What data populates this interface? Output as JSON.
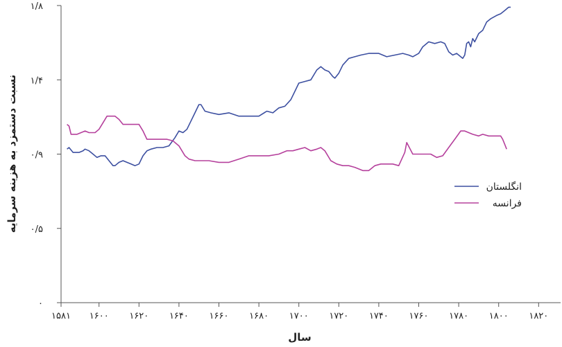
{
  "chart_data": {
    "type": "line",
    "xlabel": "سال",
    "ylabel": "نسبت دستمزد به هزینه سرمایه",
    "xlim": [
      1581,
      1831
    ],
    "ylim": [
      0,
      1.8
    ],
    "x_ticks": [
      {
        "value": 1581,
        "label": "۱۵۸۱"
      },
      {
        "value": 1600,
        "label": "۱۶۰۰"
      },
      {
        "value": 1620,
        "label": "۱۶۲۰"
      },
      {
        "value": 1640,
        "label": "۱۶۴۰"
      },
      {
        "value": 1660,
        "label": "۱۶۶۰"
      },
      {
        "value": 1680,
        "label": "۱۶۸۰"
      },
      {
        "value": 1700,
        "label": "۱۷۰۰"
      },
      {
        "value": 1720,
        "label": "۱۷۲۰"
      },
      {
        "value": 1740,
        "label": "۱۷۴۰"
      },
      {
        "value": 1760,
        "label": "۱۷۶۰"
      },
      {
        "value": 1780,
        "label": "۱۷۸۰"
      },
      {
        "value": 1800,
        "label": "۱۸۰۰"
      },
      {
        "value": 1820,
        "label": "۱۸۲۰"
      }
    ],
    "y_ticks": [
      {
        "value": 0,
        "label": "۰"
      },
      {
        "value": 0.45,
        "label": "۰/۵"
      },
      {
        "value": 0.9,
        "label": "۰/۹"
      },
      {
        "value": 1.35,
        "label": "۱/۴"
      },
      {
        "value": 1.8,
        "label": "۱/۸"
      }
    ],
    "grid": false,
    "legend_position": "right",
    "series": [
      {
        "name": "انگلستان",
        "color": "#3c4fa0",
        "points": [
          [
            1584,
            0.93
          ],
          [
            1585,
            0.94
          ],
          [
            1587,
            0.91
          ],
          [
            1590,
            0.91
          ],
          [
            1592,
            0.92
          ],
          [
            1593,
            0.93
          ],
          [
            1595,
            0.92
          ],
          [
            1597,
            0.9
          ],
          [
            1599,
            0.88
          ],
          [
            1601,
            0.89
          ],
          [
            1603,
            0.89
          ],
          [
            1605,
            0.86
          ],
          [
            1607,
            0.83
          ],
          [
            1608,
            0.83
          ],
          [
            1610,
            0.85
          ],
          [
            1612,
            0.86
          ],
          [
            1614,
            0.85
          ],
          [
            1616,
            0.84
          ],
          [
            1618,
            0.83
          ],
          [
            1620,
            0.84
          ],
          [
            1622,
            0.89
          ],
          [
            1624,
            0.92
          ],
          [
            1626,
            0.93
          ],
          [
            1629,
            0.94
          ],
          [
            1632,
            0.94
          ],
          [
            1635,
            0.95
          ],
          [
            1638,
            1.0
          ],
          [
            1640,
            1.04
          ],
          [
            1642,
            1.03
          ],
          [
            1644,
            1.05
          ],
          [
            1646,
            1.1
          ],
          [
            1648,
            1.15
          ],
          [
            1650,
            1.2
          ],
          [
            1651,
            1.2
          ],
          [
            1653,
            1.16
          ],
          [
            1656,
            1.15
          ],
          [
            1660,
            1.14
          ],
          [
            1665,
            1.15
          ],
          [
            1670,
            1.13
          ],
          [
            1675,
            1.13
          ],
          [
            1680,
            1.13
          ],
          [
            1684,
            1.16
          ],
          [
            1687,
            1.15
          ],
          [
            1690,
            1.18
          ],
          [
            1693,
            1.19
          ],
          [
            1696,
            1.23
          ],
          [
            1698,
            1.28
          ],
          [
            1700,
            1.33
          ],
          [
            1703,
            1.34
          ],
          [
            1706,
            1.35
          ],
          [
            1709,
            1.41
          ],
          [
            1711,
            1.43
          ],
          [
            1713,
            1.41
          ],
          [
            1715,
            1.4
          ],
          [
            1717,
            1.37
          ],
          [
            1718,
            1.36
          ],
          [
            1720,
            1.39
          ],
          [
            1722,
            1.44
          ],
          [
            1725,
            1.48
          ],
          [
            1728,
            1.49
          ],
          [
            1731,
            1.5
          ],
          [
            1735,
            1.51
          ],
          [
            1740,
            1.51
          ],
          [
            1744,
            1.49
          ],
          [
            1748,
            1.5
          ],
          [
            1752,
            1.51
          ],
          [
            1755,
            1.5
          ],
          [
            1757,
            1.49
          ],
          [
            1760,
            1.51
          ],
          [
            1762,
            1.55
          ],
          [
            1765,
            1.58
          ],
          [
            1768,
            1.57
          ],
          [
            1771,
            1.58
          ],
          [
            1773,
            1.57
          ],
          [
            1775,
            1.52
          ],
          [
            1777,
            1.5
          ],
          [
            1779,
            1.51
          ],
          [
            1781,
            1.49
          ],
          [
            1782,
            1.48
          ],
          [
            1783,
            1.5
          ],
          [
            1784,
            1.57
          ],
          [
            1785,
            1.58
          ],
          [
            1786,
            1.55
          ],
          [
            1787,
            1.6
          ],
          [
            1788,
            1.58
          ],
          [
            1790,
            1.63
          ],
          [
            1792,
            1.65
          ],
          [
            1794,
            1.7
          ],
          [
            1796,
            1.72
          ],
          [
            1799,
            1.74
          ],
          [
            1801,
            1.75
          ],
          [
            1803,
            1.77
          ],
          [
            1805,
            1.79
          ],
          [
            1806,
            1.79
          ]
        ]
      },
      {
        "name": "فرانسه",
        "color": "#b5409c",
        "points": [
          [
            1584,
            1.08
          ],
          [
            1585,
            1.07
          ],
          [
            1586,
            1.02
          ],
          [
            1589,
            1.02
          ],
          [
            1591,
            1.03
          ],
          [
            1593,
            1.04
          ],
          [
            1595,
            1.03
          ],
          [
            1598,
            1.03
          ],
          [
            1600,
            1.05
          ],
          [
            1602,
            1.09
          ],
          [
            1604,
            1.13
          ],
          [
            1608,
            1.13
          ],
          [
            1610,
            1.11
          ],
          [
            1612,
            1.08
          ],
          [
            1620,
            1.08
          ],
          [
            1622,
            1.04
          ],
          [
            1624,
            0.99
          ],
          [
            1628,
            0.99
          ],
          [
            1634,
            0.99
          ],
          [
            1637,
            0.98
          ],
          [
            1640,
            0.95
          ],
          [
            1643,
            0.89
          ],
          [
            1645,
            0.87
          ],
          [
            1648,
            0.86
          ],
          [
            1652,
            0.86
          ],
          [
            1655,
            0.86
          ],
          [
            1660,
            0.85
          ],
          [
            1665,
            0.85
          ],
          [
            1670,
            0.87
          ],
          [
            1675,
            0.89
          ],
          [
            1680,
            0.89
          ],
          [
            1685,
            0.89
          ],
          [
            1690,
            0.9
          ],
          [
            1694,
            0.92
          ],
          [
            1697,
            0.92
          ],
          [
            1700,
            0.93
          ],
          [
            1703,
            0.94
          ],
          [
            1706,
            0.92
          ],
          [
            1709,
            0.93
          ],
          [
            1711,
            0.94
          ],
          [
            1713,
            0.92
          ],
          [
            1716,
            0.86
          ],
          [
            1719,
            0.84
          ],
          [
            1722,
            0.83
          ],
          [
            1725,
            0.83
          ],
          [
            1728,
            0.82
          ],
          [
            1732,
            0.8
          ],
          [
            1735,
            0.8
          ],
          [
            1738,
            0.83
          ],
          [
            1741,
            0.84
          ],
          [
            1744,
            0.84
          ],
          [
            1747,
            0.84
          ],
          [
            1750,
            0.83
          ],
          [
            1753,
            0.91
          ],
          [
            1754,
            0.97
          ],
          [
            1757,
            0.9
          ],
          [
            1760,
            0.9
          ],
          [
            1763,
            0.9
          ],
          [
            1766,
            0.9
          ],
          [
            1769,
            0.88
          ],
          [
            1772,
            0.89
          ],
          [
            1775,
            0.94
          ],
          [
            1778,
            0.99
          ],
          [
            1781,
            1.04
          ],
          [
            1783,
            1.04
          ],
          [
            1785,
            1.03
          ],
          [
            1787,
            1.02
          ],
          [
            1790,
            1.01
          ],
          [
            1792,
            1.02
          ],
          [
            1795,
            1.01
          ],
          [
            1797,
            1.01
          ],
          [
            1799,
            1.01
          ],
          [
            1801,
            1.01
          ],
          [
            1802,
            0.99
          ],
          [
            1803,
            0.96
          ],
          [
            1804,
            0.93
          ]
        ]
      }
    ]
  }
}
